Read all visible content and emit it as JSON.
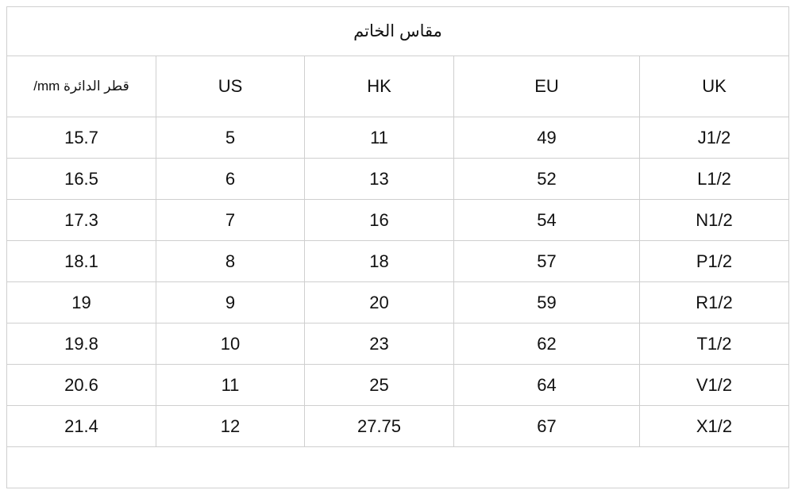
{
  "title": "مقاس الخاتم",
  "headers": [
    "/mm قطر الدائرة",
    "US",
    "HK",
    "EU",
    "UK"
  ],
  "rows": [
    [
      "15.7",
      "5",
      "11",
      "49",
      "J1/2"
    ],
    [
      "16.5",
      "6",
      "13",
      "52",
      "L1/2"
    ],
    [
      "17.3",
      "7",
      "16",
      "54",
      "N1/2"
    ],
    [
      "18.1",
      "8",
      "18",
      "57",
      "P1/2"
    ],
    [
      "19",
      "9",
      "20",
      "59",
      "R1/2"
    ],
    [
      "19.8",
      "10",
      "23",
      "62",
      "T1/2"
    ],
    [
      "20.6",
      "11",
      "25",
      "64",
      "V1/2"
    ],
    [
      "21.4",
      "12",
      "27.75",
      "67",
      "X1/2"
    ]
  ]
}
